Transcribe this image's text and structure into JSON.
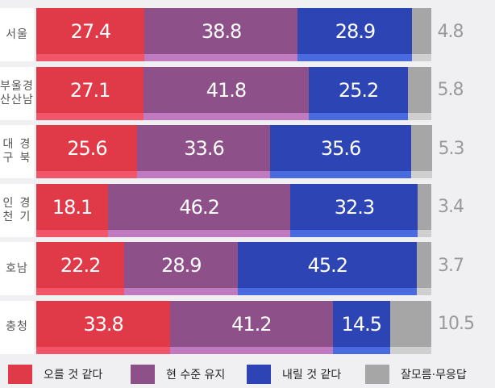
{
  "chart_data": {
    "type": "bar",
    "orientation": "horizontal",
    "stacked": true,
    "categories": [
      [
        "서울"
      ],
      [
        "부산",
        "울산",
        "경남"
      ],
      [
        "대구",
        "경북"
      ],
      [
        "인천",
        "경기"
      ],
      [
        "호남"
      ],
      [
        "충청"
      ]
    ],
    "series": [
      {
        "name": "오를 것 같다",
        "color": "#e03a48",
        "highlight": "#f0556a",
        "values": [
          27.4,
          27.1,
          25.6,
          18.1,
          22.2,
          33.8
        ]
      },
      {
        "name": "현 수준 유지",
        "color": "#8e5089",
        "highlight": "#c07ac0",
        "values": [
          38.8,
          41.8,
          33.6,
          46.2,
          28.9,
          41.2
        ]
      },
      {
        "name": "내릴 것 같다",
        "color": "#2c44b4",
        "highlight": "#4a6ae0",
        "values": [
          28.9,
          25.2,
          35.6,
          32.3,
          45.2,
          14.5
        ]
      },
      {
        "name": "잘모름·무응답",
        "color": "#a6a6a6",
        "highlight": "#cfcfcf",
        "values": [
          4.8,
          5.8,
          5.3,
          3.4,
          3.7,
          10.5
        ]
      }
    ],
    "legend": "bottom",
    "grid": false,
    "title": "",
    "xlabel": "",
    "ylabel": ""
  }
}
